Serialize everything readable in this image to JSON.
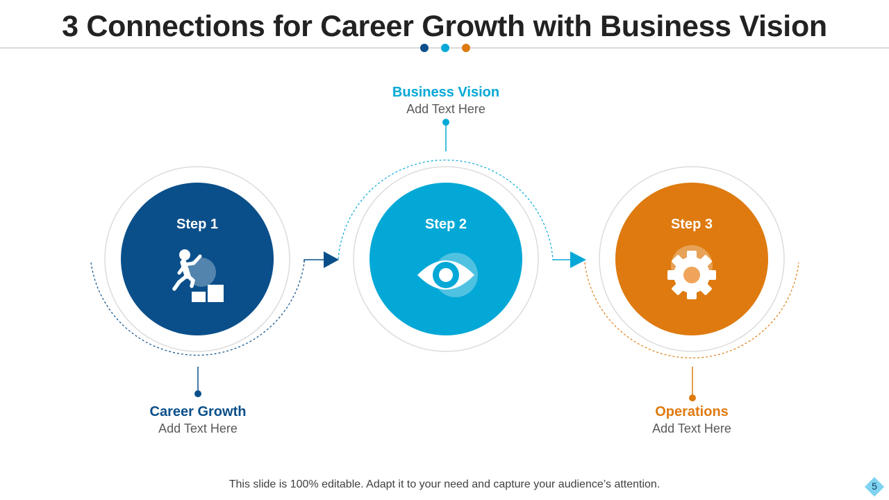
{
  "title": "3 Connections for Career Growth with Business Vision",
  "colors": {
    "dark_blue": "#0a4f8a",
    "light_blue": "#04a8d6",
    "orange": "#de7a0f",
    "ring_gray": "#dcdcdc"
  },
  "steps": [
    {
      "label": "Step 1",
      "icon": "career-climb-icon",
      "heading": "Career Growth",
      "text": "Add Text Here"
    },
    {
      "label": "Step 2",
      "icon": "eye-icon",
      "heading": "Business Vision",
      "text": "Add Text Here"
    },
    {
      "label": "Step 3",
      "icon": "gear-icon",
      "heading": "Operations",
      "text": "Add Text Here"
    }
  ],
  "footer": "This slide is 100% editable. Adapt it to your need and capture your audience’s attention.",
  "page_number": "5"
}
